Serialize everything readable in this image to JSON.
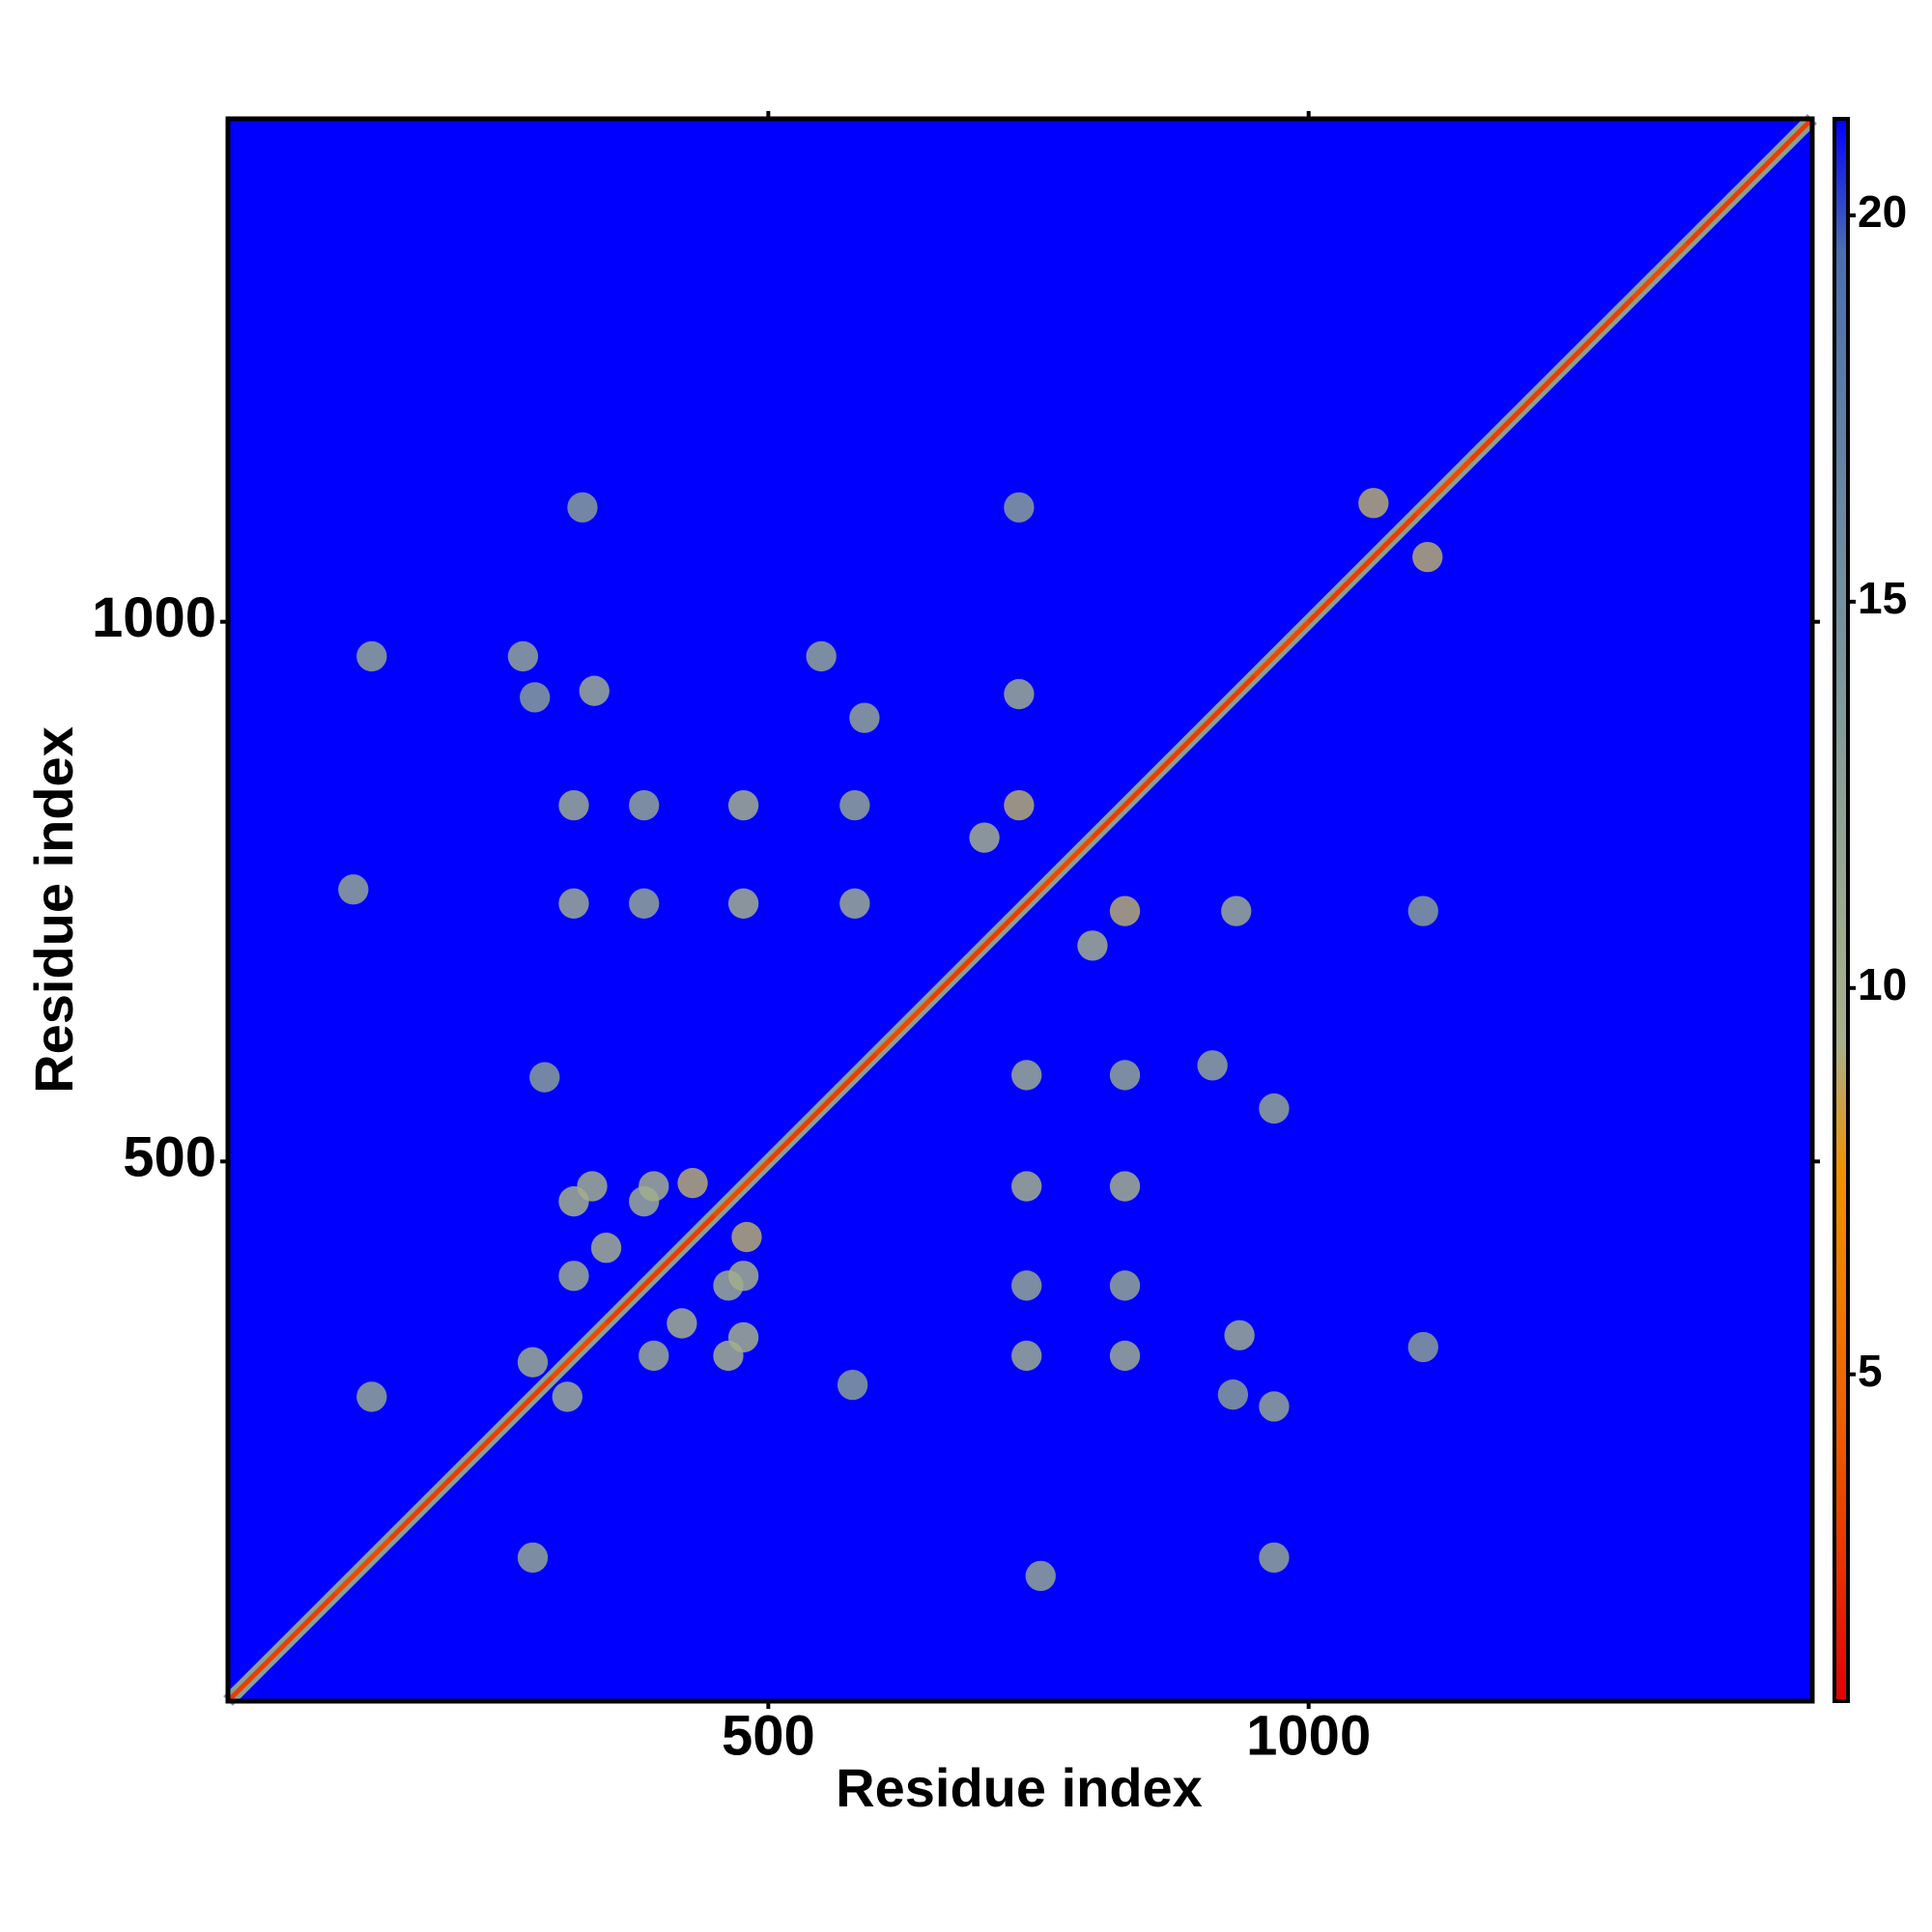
{
  "chart_data": {
    "type": "heatmap",
    "xlabel": "Residue index",
    "ylabel": "Residue index",
    "xlim": [
      0,
      1466
    ],
    "ylim": [
      0,
      1466
    ],
    "xticks": [
      500,
      1000
    ],
    "yticks": [
      500,
      1000
    ],
    "colorbar": {
      "lim": [
        0.77,
        21.25
      ],
      "ticks": [
        5,
        10,
        15,
        20
      ],
      "colors": [
        "#e00000",
        "#e83000",
        "#ee5a00",
        "#f07800",
        "#f29000",
        "#a8b08a",
        "#9aaa90",
        "#8aa096",
        "#7a949c",
        "#6a88a2",
        "#5a7ca8",
        "#4a6eb0",
        "#0000ff"
      ]
    },
    "diagonal": {
      "x": [
        0,
        50,
        100,
        150,
        200,
        250,
        300,
        350,
        400,
        450,
        500,
        550,
        600,
        650,
        700,
        750,
        800,
        850,
        900,
        950,
        1000,
        1050,
        1100,
        1150,
        1200,
        1250,
        1300,
        1350,
        1400,
        1450
      ],
      "values": [
        3,
        3,
        3.5,
        3,
        3,
        3,
        3.5,
        3,
        3,
        3.5,
        3,
        3,
        3.5,
        3,
        3,
        3.5,
        3,
        3,
        3,
        3.5,
        3,
        3,
        3.5,
        3,
        3,
        3,
        3.5,
        3,
        3,
        3
      ]
    },
    "contacts": {
      "x": [
        133,
        116,
        273,
        339,
        284,
        320,
        385,
        477,
        580,
        320,
        385,
        477,
        580,
        549,
        589,
        328,
        732,
        732,
        732,
        293,
        320,
        385,
        320,
        282,
        133,
        394,
        337,
        700,
        1060,
        430,
        350,
        968,
        752,
        968,
        936,
        930,
        830,
        830,
        830,
        830,
        739,
        739,
        739,
        739,
        968,
        911,
        1106,
        933,
        830,
        1106,
        578,
        463,
        463,
        394,
        314,
        282,
        477,
        477,
        800,
        1110,
        480,
        420
      ],
      "y": [
        968,
        752,
        968,
        936,
        930,
        830,
        830,
        830,
        830,
        739,
        739,
        739,
        739,
        968,
        911,
        1106,
        933,
        830,
        1106,
        578,
        463,
        463,
        394,
        314,
        282,
        477,
        477,
        800,
        1110,
        480,
        420,
        133,
        116,
        273,
        339,
        284,
        320,
        385,
        477,
        580,
        320,
        385,
        477,
        580,
        549,
        589,
        328,
        732,
        732,
        732,
        293,
        320,
        385,
        320,
        282,
        133,
        394,
        337,
        700,
        1060,
        430,
        350
      ],
      "values": [
        12,
        12,
        12,
        11,
        13,
        11,
        12,
        10,
        12,
        11,
        12,
        10,
        11,
        12,
        12,
        13,
        11,
        9,
        13,
        13,
        10,
        11,
        11,
        11,
        12,
        10,
        10,
        10,
        9,
        9,
        10,
        12,
        12,
        12,
        11,
        13,
        11,
        12,
        10,
        12,
        11,
        12,
        10,
        11,
        12,
        12,
        13,
        11,
        9,
        13,
        13,
        10,
        11,
        11,
        11,
        12,
        10,
        10,
        10,
        9,
        9,
        10
      ]
    }
  }
}
